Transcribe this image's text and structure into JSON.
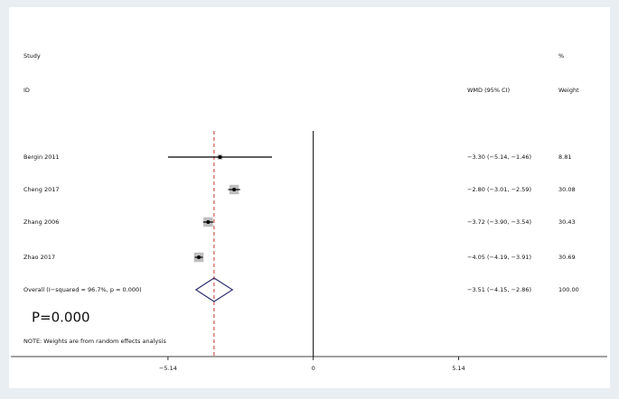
{
  "chart_data": {
    "type": "forest",
    "header": {
      "study": "Study",
      "id": "ID",
      "percent": "%",
      "effect": "WMD (95% CI)",
      "weight": "Weight"
    },
    "studies": [
      {
        "name": "Bergin 2011",
        "estimate": -3.3,
        "lower": -5.14,
        "upper": -1.46,
        "ci_label": "−3.30 (−5.14, −1.46)",
        "weight": 8.81
      },
      {
        "name": "Cheng 2017",
        "estimate": -2.8,
        "lower": -3.01,
        "upper": -2.59,
        "ci_label": "−2.80 (−3.01, −2.59)",
        "weight": 30.08
      },
      {
        "name": "Zhang 2006",
        "estimate": -3.72,
        "lower": -3.9,
        "upper": -3.54,
        "ci_label": "−3.72 (−3.90, −3.54)",
        "weight": 30.43
      },
      {
        "name": "Zhao 2017",
        "estimate": -4.05,
        "lower": -4.19,
        "upper": -3.91,
        "ci_label": "−4.05 (−4.19, −3.91)",
        "weight": 30.69
      }
    ],
    "overall": {
      "name": "Overall  (I−squared = 96.7%, p = 0.000)",
      "estimate": -3.51,
      "lower": -4.15,
      "upper": -2.86,
      "ci_label": "−3.51 (−4.15, −2.86)",
      "weight": {
        "value": 100,
        "label": "100.00"
      }
    },
    "p_label": "P=0.000",
    "note": "NOTE: Weights are from random effects analysis",
    "xlim": [
      -10.7,
      10.4
    ],
    "xticks": [
      {
        "value": -5.14,
        "label": "−5.14"
      },
      0,
      5.14
    ],
    "colors": {
      "ci": "#000000",
      "box": "#bdbdbd",
      "point": "#000000",
      "diamond": "#2e3170",
      "pooled_line": "#c0392b"
    }
  }
}
